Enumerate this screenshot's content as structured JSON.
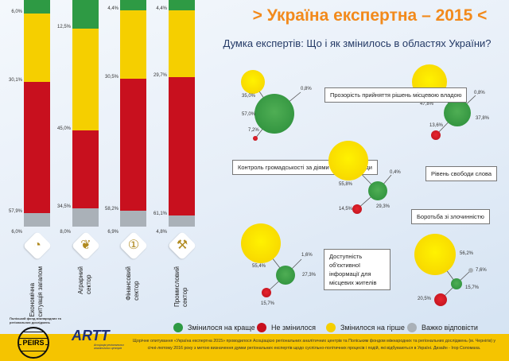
{
  "title": "> Україна експертна – 2015 <",
  "subtitle": "Думка експертів: Що і як змінилось в областях України?",
  "colors": {
    "better": "#2e9a44",
    "unchanged": "#c8101e",
    "worse": "#f5cf00",
    "hard": "#aab1b8",
    "title": "#f28a1c"
  },
  "chart_data": [
    {
      "type": "bar",
      "stacked": true,
      "orientation": "vertical",
      "categories": [
        "Економічна ситуація загалом",
        "Аграрний сектор",
        "Фінансовий сектор",
        "Промисловий сектор"
      ],
      "series": [
        {
          "name": "Змінилося на краще",
          "values": [
            6.0,
            12.5,
            4.4,
            4.4
          ]
        },
        {
          "name": "Змінилося на гірше",
          "values": [
            30.1,
            45.0,
            30.5,
            29.7
          ]
        },
        {
          "name": "Не змінилося",
          "values": [
            57.9,
            34.5,
            58.2,
            61.1
          ]
        },
        {
          "name": "Важко відповісти",
          "values": [
            6.0,
            8.0,
            6.9,
            4.8
          ]
        }
      ],
      "labels": [
        [
          "6,0%",
          "30,1%",
          "57,9%",
          "6,0%"
        ],
        [
          "12,5%",
          "45,0%",
          "34,5%",
          "8,0%"
        ],
        [
          "4,4%",
          "30,5%",
          "58,2%",
          "6,9%"
        ],
        [
          "4,4%",
          "29,7%",
          "61,1%",
          "4,8%"
        ]
      ]
    },
    {
      "type": "bubble",
      "groups": [
        {
          "title": "Контроль громадськості за діями місцевої влади",
          "better": 57.0,
          "unchanged": 7.2,
          "worse": 35.0,
          "hard": 0.8,
          "labels": {
            "better": "57,0%",
            "unchanged": "7,2%",
            "worse": "35,0%",
            "hard": "0,8%"
          }
        },
        {
          "title": "Прозорість прийняття рішень місцевою владою",
          "better": 37.8,
          "unchanged": 13.6,
          "worse": 47.8,
          "hard": 0.8,
          "labels": {
            "better": "37,8%",
            "unchanged": "13,6%",
            "worse": "47,8%",
            "hard": "0,8%"
          }
        },
        {
          "title": "Рівень свободи слова",
          "better": 29.3,
          "unchanged": 14.5,
          "worse": 55.8,
          "hard": 0.4,
          "labels": {
            "better": "29,3%",
            "unchanged": "14,5%",
            "worse": "55,8%",
            "hard": "0,4%"
          }
        },
        {
          "title": "Доступність об'єктивної інформації для місцевих жителів",
          "better": 27.3,
          "unchanged": 15.7,
          "worse": 55.4,
          "hard": 1.6,
          "labels": {
            "better": "27,3%",
            "unchanged": "15,7%",
            "worse": "55,4%",
            "hard": "1,6%"
          }
        },
        {
          "title": "Боротьба зі злочинністю",
          "better": 15.7,
          "unchanged": 20.5,
          "worse": 56.2,
          "hard": 7.6,
          "labels": {
            "better": "15,7%",
            "unchanged": "20,5%",
            "worse": "56,2%",
            "hard": "7,6%"
          }
        }
      ]
    }
  ],
  "sectors": [
    [
      "Економічна",
      "ситуація загалом"
    ],
    [
      "Аграрний",
      "сектор"
    ],
    [
      "Фінансовий",
      "сектор"
    ],
    [
      "Промисловий",
      "сектор"
    ]
  ],
  "legend": [
    "Змінилося на краще",
    "Не змінилося",
    "Змінилося на гірше",
    "Важко відповісти"
  ],
  "logos": {
    "peirs_caption": "Поліський фонд міжнародних та регіональних досліджень",
    "peirs": "PEIRS",
    "artt": "ARTT",
    "artt_caption": "Асоціація регіональних аналітичних центрів"
  },
  "footer": "Щорічне опитування «Україна експертна 2015» проводилося Асоціацією регіональних аналітичних центрів та Поліським фондом міжнародних та регіональних досліджень (м. Чернігів) у січні-лютому 2016 року з метою визначення думки регіональних експертів щодо суспільно-політичних процесів і подій, які відбуваються в Україні. Дизайн - Ігор Соломаха."
}
